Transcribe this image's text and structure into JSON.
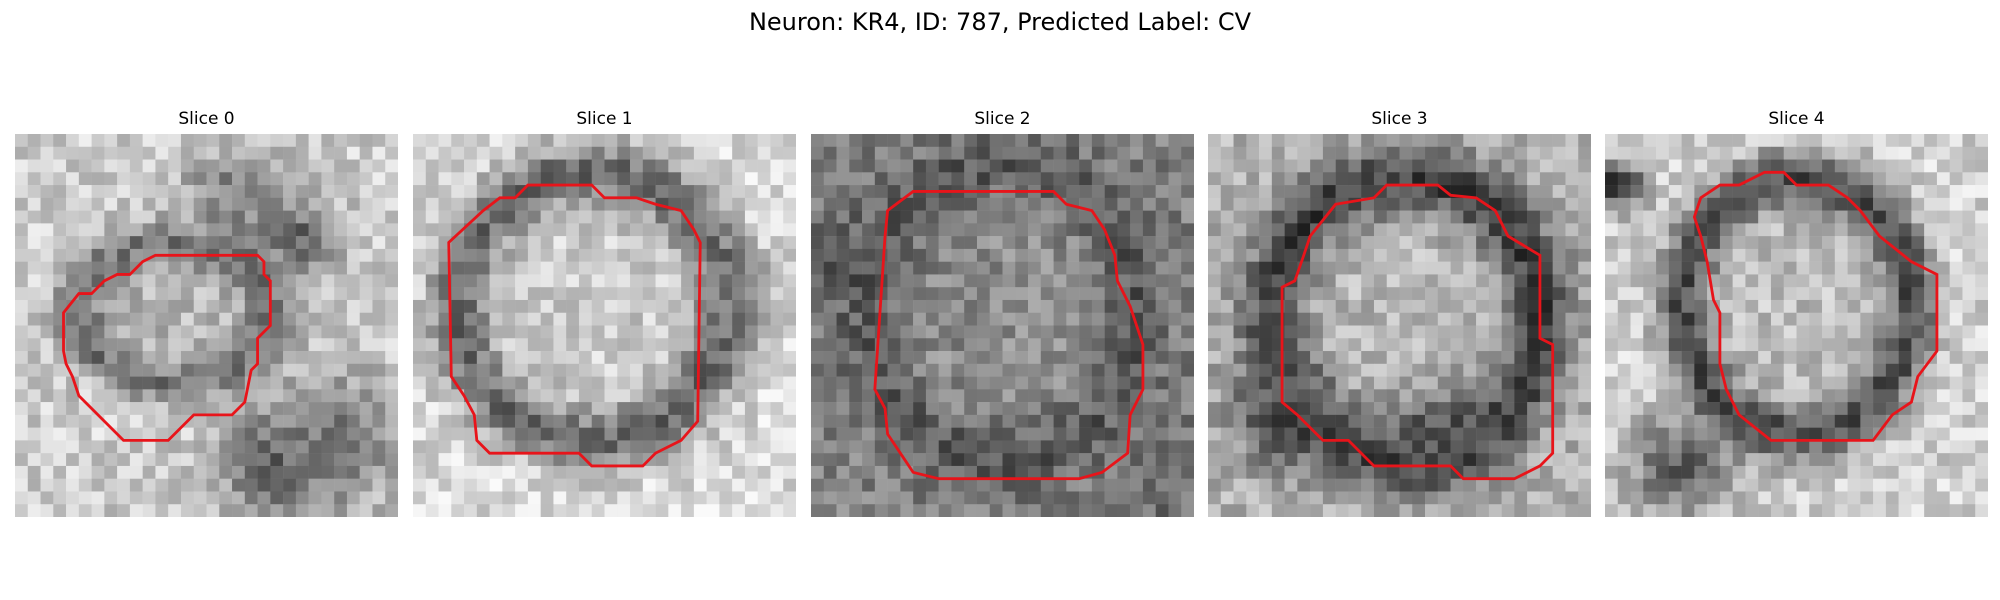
{
  "figure": {
    "title": "Neuron: KR4, ID: 787, Predicted Label: CV"
  },
  "slices": [
    {
      "title": "Slice 0"
    },
    {
      "title": "Slice 1"
    },
    {
      "title": "Slice 2"
    },
    {
      "title": "Slice 3"
    },
    {
      "title": "Slice 4"
    }
  ],
  "colors": {
    "contour": "#e8141a",
    "background": "#ffffff",
    "colormap": "grayscale"
  }
}
